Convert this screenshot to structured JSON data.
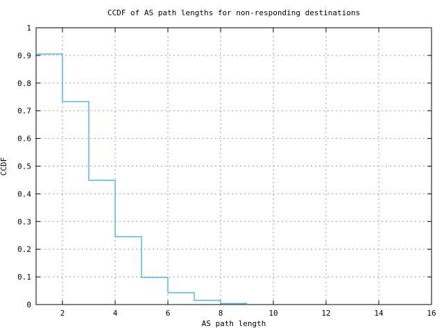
{
  "chart_data": {
    "type": "line",
    "step": "step-after",
    "title": "CCDF of AS path lengths for non-responding destinations",
    "xlabel": "AS path length",
    "ylabel": "CCDF",
    "xlim": [
      1,
      16
    ],
    "ylim": [
      0,
      1
    ],
    "x": [
      1,
      2,
      3,
      4,
      5,
      6,
      7,
      8,
      9
    ],
    "y": [
      0.905,
      0.733,
      0.449,
      0.245,
      0.098,
      0.043,
      0.015,
      0.004,
      0
    ],
    "x_ticks": [
      2,
      4,
      6,
      8,
      10,
      12,
      14,
      16
    ],
    "x_tick_labels": [
      "2",
      "4",
      "6",
      "8",
      "10",
      "12",
      "14",
      "16"
    ],
    "y_ticks": [
      0,
      0.1,
      0.2,
      0.3,
      0.4,
      0.5,
      0.6,
      0.7,
      0.8,
      0.9,
      1
    ],
    "y_tick_labels": [
      "0",
      "0.1",
      "0.2",
      "0.3",
      "0.4",
      "0.5",
      "0.6",
      "0.7",
      "0.8",
      "0.9",
      "1"
    ],
    "grid": true,
    "legend": "none",
    "colors": {
      "line": "#56b4e9",
      "grid": "#999999",
      "border": "#000000",
      "background": "#ffffff"
    }
  }
}
